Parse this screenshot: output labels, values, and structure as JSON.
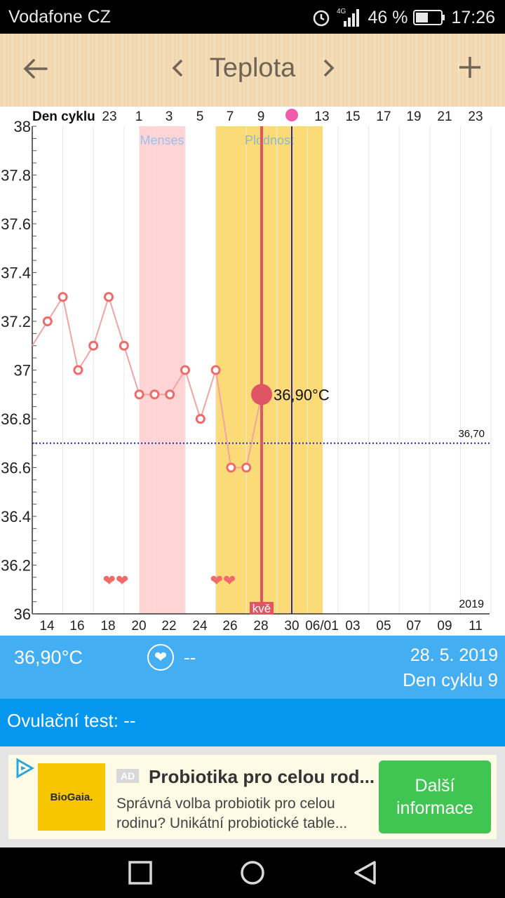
{
  "status_bar": {
    "carrier": "Vodafone CZ",
    "network": "4G",
    "battery": "46 %",
    "time": "17:26"
  },
  "app_bar": {
    "title": "Teplota",
    "icons": [
      "back-arrow-icon",
      "chevron-left-icon",
      "chevron-right-icon",
      "plus-icon"
    ]
  },
  "chart_data": {
    "type": "line",
    "ylim": [
      36,
      38
    ],
    "y_ticks": [
      "38",
      "37.8",
      "37.6",
      "37.4",
      "37.2",
      "37",
      "36.8",
      "36.6",
      "36.4",
      "36.2",
      "36"
    ],
    "top_axis_title": "Den cyklu",
    "top_ticks": [
      "23",
      "1",
      "3",
      "5",
      "7",
      "9",
      "13",
      "15",
      "17",
      "19",
      "21",
      "23"
    ],
    "x_ticks": [
      "14",
      "16",
      "18",
      "20",
      "22",
      "24",
      "26",
      "28",
      "30",
      "06/01",
      "03",
      "05",
      "07",
      "09",
      "11"
    ],
    "days": [
      13,
      14,
      15,
      16,
      17,
      18,
      19,
      20,
      21,
      22,
      23,
      24,
      25,
      26,
      27,
      28
    ],
    "temperatures": [
      37.1,
      37.2,
      37.3,
      37.0,
      37.1,
      37.3,
      37.1,
      36.9,
      36.9,
      36.9,
      37.0,
      36.8,
      37.0,
      36.6,
      36.6,
      36.9
    ],
    "menses_label": "Menses",
    "fertility_label": "Plodnost",
    "coverline_label": "36,70",
    "coverline_value": 36.7,
    "selected_label": "36,90°C",
    "selected_day": 28,
    "selected_temp": 36.9,
    "year_label": "2019",
    "marker_label": "kvě",
    "hearts": [
      "❤❤",
      "❤❤"
    ],
    "colors": {
      "temp_line": "#f4a3a3",
      "point": "#f06a6a",
      "menses": "#ffd4d4",
      "fertility": "#fadb78",
      "today_line": "#e05563",
      "ovulation_line": "#2d2d9a",
      "coverline": "#1c23c8"
    }
  },
  "info_bar": {
    "temperature": "36,90°C",
    "sex": "--",
    "date": "28. 5. 2019",
    "cycle_day": "Den cyklu 9"
  },
  "ovulation": {
    "text": "Ovulační test: --"
  },
  "ad": {
    "logo_text": "BioGaia.",
    "badge": "AD",
    "title": "Probiotika pro celou rod...",
    "description": "Správná volba probiotik pro celou rodinu? Unikátní probiotické table...",
    "cta": "Další informace"
  }
}
